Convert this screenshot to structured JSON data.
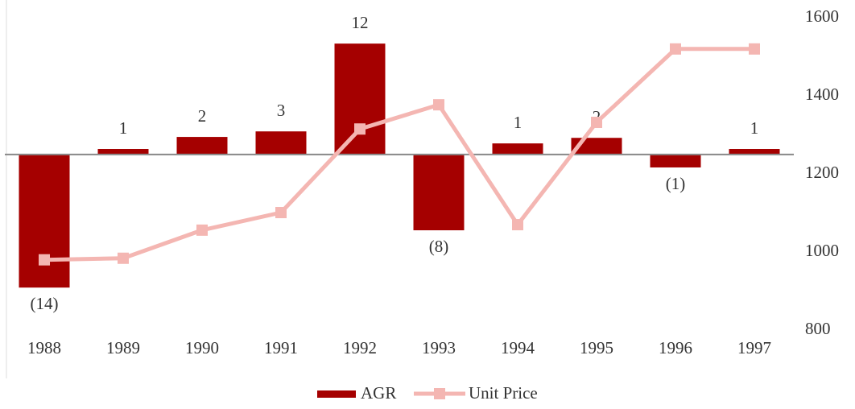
{
  "chart_data": {
    "type": "bar-line",
    "categories": [
      "1988",
      "1989",
      "1990",
      "1991",
      "1992",
      "1993",
      "1994",
      "1995",
      "1996",
      "1997"
    ],
    "series": [
      {
        "name": "AGR",
        "type": "bar",
        "color": "#a50000",
        "values": [
          -14.4,
          0.6,
          1.9,
          2.5,
          12.0,
          -8.2,
          1.2,
          1.8,
          -1.4,
          0.6
        ],
        "value_labels": [
          "(14)",
          "1",
          "2",
          "3",
          "12",
          "(8)",
          "1",
          "2",
          "(1)",
          "1"
        ]
      },
      {
        "name": "Unit Price",
        "type": "line",
        "axis": "y2",
        "color": "#f4b6b2",
        "values": [
          980,
          984,
          1056,
          1101,
          1315,
          1377,
          1070,
          1332,
          1520,
          1520
        ]
      }
    ],
    "ylim": [
      -19,
      14.8
    ],
    "y2lim": [
      800,
      1600
    ],
    "y2ticks": [
      800,
      1000,
      1200,
      1400,
      1600
    ],
    "legend": "bottom"
  }
}
